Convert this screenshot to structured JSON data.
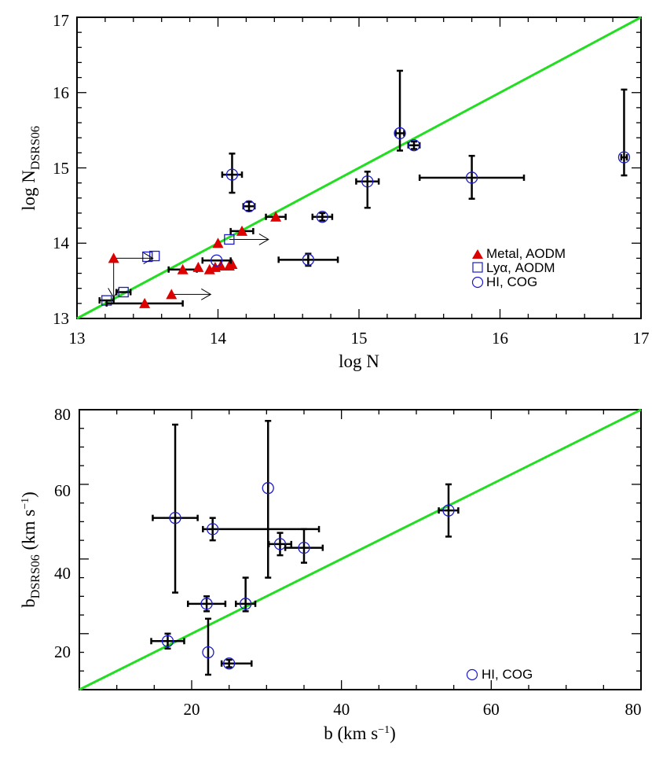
{
  "colors": {
    "identity_line": "#22dd22",
    "metal_marker": "#dd0000",
    "hi_marker": "#1a1acc",
    "error_bar": "#000000"
  },
  "chart_data": [
    {
      "type": "scatter",
      "xlabel": "log N",
      "ylabel_main": "log N",
      "ylabel_sub": "DSRS06",
      "xlim": [
        13,
        17
      ],
      "ylim": [
        13,
        17
      ],
      "xticks": [
        "13",
        "14",
        "15",
        "16",
        "17"
      ],
      "yticks": [
        "13",
        "14",
        "15",
        "16",
        "17"
      ],
      "reference_line": "y = x",
      "legend_position": "right-center",
      "legend": [
        "Metal, AODM",
        "Lyα, AODM",
        "HI, COG"
      ],
      "series": [
        {
          "name": "Metal, AODM",
          "marker": "triangle",
          "points": [
            {
              "x": 13.26,
              "y": 13.8,
              "upper_x": true,
              "upper_y": true
            },
            {
              "x": 13.48,
              "y": 13.2,
              "xerr": 0.27
            },
            {
              "x": 13.67,
              "y": 13.32,
              "upper_x": true
            },
            {
              "x": 13.75,
              "y": 13.65,
              "xerr": 0.1
            },
            {
              "x": 13.86,
              "y": 13.68
            },
            {
              "x": 13.94,
              "y": 13.65
            },
            {
              "x": 13.98,
              "y": 13.68
            },
            {
              "x": 14.02,
              "y": 13.7
            },
            {
              "x": 14.08,
              "y": 13.7
            },
            {
              "x": 14.1,
              "y": 13.72
            },
            {
              "x": 14.0,
              "y": 14.0
            },
            {
              "x": 14.17,
              "y": 14.16,
              "xerr": 0.08
            },
            {
              "x": 14.41,
              "y": 14.35,
              "xerr": 0.07
            }
          ]
        },
        {
          "name": "Lyα, AODM",
          "marker": "square",
          "points": [
            {
              "x": 13.21,
              "y": 13.24,
              "xerr": 0.05
            },
            {
              "x": 13.33,
              "y": 13.35,
              "xerr": 0.05
            },
            {
              "x": 13.5,
              "y": 13.82
            },
            {
              "x": 13.55,
              "y": 13.83
            },
            {
              "x": 14.08,
              "y": 14.05,
              "upper_x": true
            }
          ]
        },
        {
          "name": "HI, COG",
          "marker": "circle",
          "points": [
            {
              "x": 13.99,
              "y": 13.77,
              "xerr": 0.1
            },
            {
              "x": 14.1,
              "y": 14.91,
              "xerr": 0.07,
              "yerr": [
                0.24,
                0.28
              ]
            },
            {
              "x": 14.22,
              "y": 14.49,
              "xerr": 0.04,
              "yerr": [
                0.06,
                0.06
              ]
            },
            {
              "x": 14.64,
              "y": 13.78,
              "xerr": 0.21,
              "yerr": [
                0.08,
                0.08
              ]
            },
            {
              "x": 14.74,
              "y": 14.35,
              "xerr": 0.07,
              "yerr": [
                0.05,
                0.05
              ]
            },
            {
              "x": 15.06,
              "y": 14.82,
              "xerr": 0.08,
              "yerr": [
                0.35,
                0.13
              ]
            },
            {
              "x": 15.29,
              "y": 15.46,
              "xerr": 0.03,
              "yerr": [
                0.23,
                0.83
              ]
            },
            {
              "x": 15.39,
              "y": 15.3,
              "xerr": 0.04,
              "yerr": [
                0.05,
                0.05
              ]
            },
            {
              "x": 15.8,
              "y": 14.87,
              "xerr": 0.37,
              "yerr": [
                0.28,
                0.29
              ]
            },
            {
              "x": 16.88,
              "y": 15.14,
              "xerr": 0.02,
              "yerr": [
                0.24,
                0.9
              ]
            }
          ]
        }
      ]
    },
    {
      "type": "scatter",
      "xlabel": "b (km s⁻¹)",
      "ylabel_main": "b",
      "ylabel_sub": "DSRS06",
      "ylabel_units": " (km s⁻¹)",
      "xlim": [
        5,
        80
      ],
      "ylim": [
        5,
        80
      ],
      "xticks": [
        "20",
        "40",
        "60",
        "80"
      ],
      "yticks": [
        "20",
        "40",
        "60",
        "80"
      ],
      "reference_line": "y = x",
      "legend_position": "bottom-right",
      "legend": [
        "HI, COG"
      ],
      "series": [
        {
          "name": "HI, COG",
          "marker": "circle",
          "points": [
            {
              "x": 16.8,
              "y": 18,
              "xerr": 2.2,
              "yerr": [
                2,
                2
              ]
            },
            {
              "x": 17.8,
              "y": 51,
              "xerr": 3,
              "yerr": [
                20,
                25
              ]
            },
            {
              "x": 22.0,
              "y": 28,
              "xerr": 2.5,
              "yerr": [
                2,
                2
              ]
            },
            {
              "x": 22.2,
              "y": 15,
              "yerr": [
                6,
                9
              ]
            },
            {
              "x": 22.8,
              "y": 48,
              "xerr": [
                1.3,
                14.2
              ],
              "yerr": [
                3,
                3
              ]
            },
            {
              "x": 25.0,
              "y": 12,
              "xerr": [
                1,
                3
              ],
              "yerr": [
                1,
                1
              ]
            },
            {
              "x": 27.2,
              "y": 28,
              "xerr": 1.3,
              "yerr": [
                2,
                7
              ]
            },
            {
              "x": 30.2,
              "y": 59,
              "yerr": [
                24,
                18
              ]
            },
            {
              "x": 31.8,
              "y": 44,
              "xerr": 1.5,
              "yerr": [
                3,
                3
              ]
            },
            {
              "x": 35.0,
              "y": 43,
              "xerr": 2.5,
              "yerr": [
                4,
                5
              ]
            },
            {
              "x": 54.3,
              "y": 53,
              "xerr": 1.3,
              "yerr": [
                7,
                7
              ]
            }
          ]
        }
      ]
    }
  ]
}
